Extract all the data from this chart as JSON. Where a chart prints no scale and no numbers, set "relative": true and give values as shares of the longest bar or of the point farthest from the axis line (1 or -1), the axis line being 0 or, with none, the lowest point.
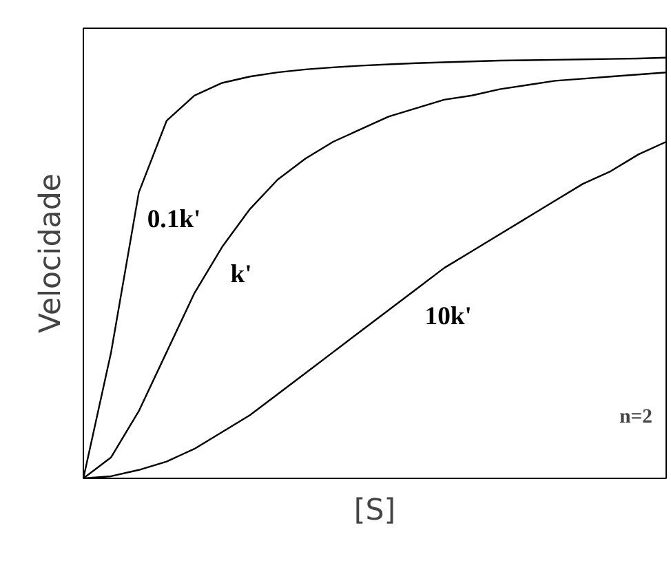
{
  "chart_data": {
    "type": "line",
    "relative": true,
    "xlabel": "[S]",
    "ylabel": "Velocidade",
    "categories": [
      null,
      null,
      null,
      null,
      null,
      null,
      null,
      null,
      null,
      null,
      null,
      null,
      null,
      null,
      null,
      null,
      null,
      null,
      null,
      null,
      null,
      null
    ],
    "series": [
      {
        "name": "0.1k'",
        "color": "#000000",
        "values": [
          0,
          0.3,
          0.68,
          0.85,
          0.91,
          0.94,
          0.955,
          0.965,
          0.972,
          0.977,
          0.981,
          0.984,
          0.987,
          0.989,
          0.991,
          0.993,
          0.994,
          0.995,
          0.996,
          0.997,
          0.998,
          1.0
        ]
      },
      {
        "name": "k'",
        "color": "#000000",
        "values": [
          0,
          0.05,
          0.16,
          0.3,
          0.44,
          0.55,
          0.64,
          0.71,
          0.76,
          0.8,
          0.83,
          0.86,
          0.88,
          0.9,
          0.91,
          0.925,
          0.935,
          0.945,
          0.95,
          0.955,
          0.96,
          0.965
        ]
      },
      {
        "name": "10k'",
        "color": "#000000",
        "values": [
          0,
          0.005,
          0.02,
          0.04,
          0.07,
          0.11,
          0.15,
          0.2,
          0.25,
          0.3,
          0.35,
          0.4,
          0.45,
          0.5,
          0.54,
          0.58,
          0.62,
          0.66,
          0.7,
          0.73,
          0.77,
          0.8
        ]
      }
    ],
    "annotations": [
      "n=2"
    ],
    "grid": false,
    "marker": "none",
    "line_style": "solid"
  }
}
